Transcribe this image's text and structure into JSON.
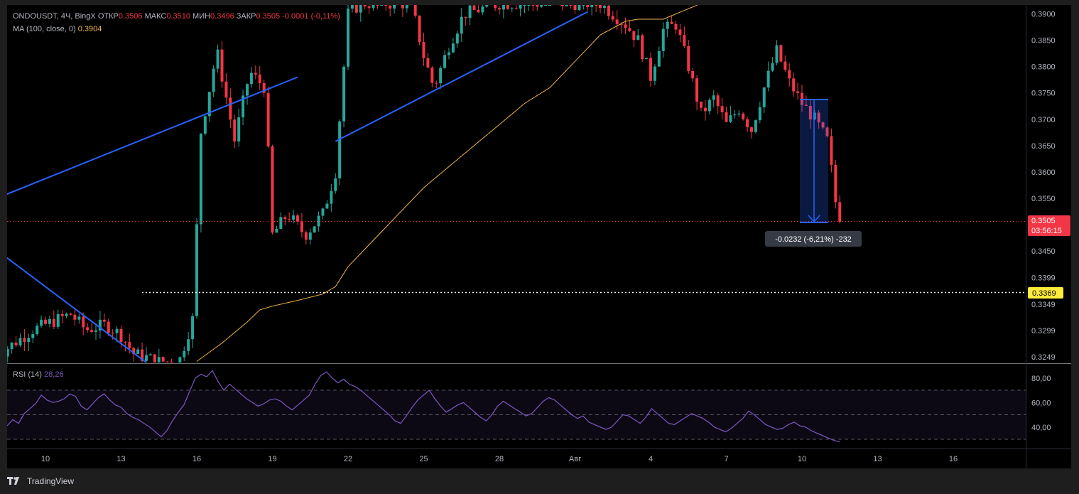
{
  "header": {
    "symbol": "ONDOUSDT, 4Ч, BingX",
    "open_label": "ОТКР",
    "open": "0.3506",
    "high_label": "МАКС",
    "high": "0.3510",
    "low_label": "МИН",
    "low": "0.3496",
    "close_label": "ЗАКР",
    "close": "0.3505",
    "change": "-0.0001 (-0,11%)"
  },
  "ma_legend": {
    "label": "MA (100, close, 0)",
    "value": "0.3904"
  },
  "rsi_legend": {
    "label": "RSI (14)",
    "value": "28,26"
  },
  "price_badge": {
    "price": "0.3505",
    "timer": "03:56:15"
  },
  "level_badge": "0.3369",
  "measure_label": "-0.0232 (-6,21%) -232",
  "footer": {
    "brand": "TradingView",
    "logo": "tradingview-logo"
  },
  "colors": {
    "up": "#26a69a",
    "down": "#f23645",
    "trendline": "#2962ff",
    "ma": "#f0b44a",
    "rsi": "#7e57c2",
    "level": "#ffeb3b"
  },
  "chart_data": [
    {
      "type": "candlestick",
      "title": "ONDOUSDT, 4Ч, BingX",
      "x_ticks": [
        "10",
        "13",
        "16",
        "19",
        "22",
        "25",
        "28",
        "Авг",
        "4",
        "7",
        "10",
        "13",
        "16"
      ],
      "y_ticks": [
        "0.3900",
        "0.3850",
        "0.3800",
        "0.3750",
        "0.3700",
        "0.3650",
        "0.3600",
        "0.3550",
        "0.3450",
        "0.3399",
        "0.3349",
        "0.3299",
        "0.3249"
      ],
      "ylim": [
        0.3238,
        0.3917
      ],
      "grid": false,
      "last_price": 0.3505,
      "horizontal_level": 0.3369,
      "series": [
        {
          "name": "MA (100, close, 0)",
          "points": [
            [
              16,
              0.324
            ],
            [
              17,
              0.3275
            ],
            [
              18,
              0.3315
            ],
            [
              18.5,
              0.3338
            ],
            [
              19,
              0.3345
            ],
            [
              20,
              0.3356
            ],
            [
              21,
              0.3368
            ],
            [
              21.5,
              0.3382
            ],
            [
              22,
              0.342
            ],
            [
              23,
              0.347
            ],
            [
              24,
              0.352
            ],
            [
              25,
              0.357
            ],
            [
              26,
              0.361
            ],
            [
              27,
              0.365
            ],
            [
              28,
              0.369
            ],
            [
              29,
              0.373
            ],
            [
              30,
              0.376
            ],
            [
              31,
              0.381
            ],
            [
              32,
              0.386
            ],
            [
              33,
              0.3886
            ],
            [
              33.5,
              0.389
            ],
            [
              34.5,
              0.389
            ],
            [
              35.5,
              0.391
            ],
            [
              36,
              0.392
            ]
          ]
        },
        {
          "name": "trendline-1",
          "points": [
            [
              7.5,
              0.3472
            ],
            [
              14.0,
              0.3238
            ]
          ]
        },
        {
          "name": "trendline-2",
          "points": [
            [
              7.5,
              0.3539
            ],
            [
              20.0,
              0.378
            ]
          ]
        },
        {
          "name": "trendline-3",
          "points": [
            [
              21.5,
              0.3658
            ],
            [
              31.5,
              0.3904
            ]
          ]
        }
      ],
      "measure": {
        "from": 0.3737,
        "to": 0.3505,
        "label": "-0.0232 (-6,21%) -232"
      }
    },
    {
      "type": "line",
      "title": "RSI (14)",
      "y_ticks": [
        "80,00",
        "60,00",
        "40,00"
      ],
      "levels": [
        70,
        50,
        30
      ],
      "ylim": [
        23,
        90
      ],
      "series": [
        {
          "name": "RSI (14)",
          "values": [
            41,
            46,
            43,
            51,
            55,
            59,
            66,
            62,
            60,
            61,
            63,
            67,
            65,
            57,
            54,
            59,
            64,
            67,
            62,
            58,
            56,
            51,
            48,
            46,
            43,
            40,
            36,
            32,
            37,
            45,
            52,
            58,
            69,
            80,
            83,
            81,
            86,
            77,
            70,
            75,
            71,
            67,
            63,
            60,
            57,
            59,
            62,
            63,
            61,
            57,
            54,
            58,
            62,
            66,
            75,
            82,
            85,
            80,
            76,
            79,
            75,
            73,
            70,
            66,
            62,
            58,
            54,
            50,
            45,
            43,
            49,
            56,
            62,
            66,
            70,
            63,
            57,
            52,
            55,
            58,
            60,
            56,
            52,
            48,
            45,
            50,
            57,
            61,
            58,
            55,
            52,
            49,
            51,
            56,
            61,
            64,
            62,
            58,
            54,
            50,
            47,
            49,
            44,
            42,
            40,
            38,
            40,
            45,
            50,
            49,
            46,
            43,
            48,
            55,
            51,
            47,
            43,
            42,
            45,
            48,
            51,
            49,
            47,
            44,
            40,
            38,
            36,
            39,
            43,
            47,
            53,
            50,
            46,
            42,
            40,
            38,
            39,
            42,
            44,
            41,
            40,
            37,
            35,
            33,
            31,
            29,
            28
          ]
        }
      ]
    }
  ]
}
